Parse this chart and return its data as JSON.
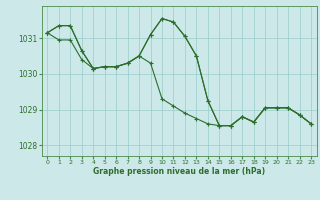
{
  "title": "Graphe pression niveau de la mer (hPa)",
  "bg_color": "#cce8e8",
  "grid_color": "#99cccc",
  "line_color": "#2d6e2d",
  "ylim": [
    1027.7,
    1031.9
  ],
  "xlim": [
    -0.5,
    23.5
  ],
  "yticks": [
    1028,
    1029,
    1030,
    1031
  ],
  "xticks": [
    0,
    1,
    2,
    3,
    4,
    5,
    6,
    7,
    8,
    9,
    10,
    11,
    12,
    13,
    14,
    15,
    16,
    17,
    18,
    19,
    20,
    21,
    22,
    23
  ],
  "series": [
    {
      "x": [
        0,
        1,
        2,
        3,
        4,
        5,
        6,
        7,
        8,
        9,
        10,
        11,
        12,
        13,
        14,
        15,
        16,
        17,
        18,
        19,
        20,
        21,
        22,
        23
      ],
      "y": [
        1031.15,
        1031.35,
        1031.35,
        1030.65,
        1030.15,
        1030.2,
        1030.2,
        1030.3,
        1030.5,
        1031.1,
        1031.55,
        1031.45,
        1031.05,
        1030.5,
        1029.25,
        1028.55,
        1028.55,
        1028.8,
        1028.65,
        1029.05,
        1029.05,
        1029.05,
        1028.85,
        1028.6
      ]
    },
    {
      "x": [
        0,
        1,
        2,
        3,
        4,
        5,
        6,
        7,
        8,
        9,
        10,
        11,
        12,
        13,
        14,
        15,
        16,
        17,
        18,
        19,
        20,
        21,
        22,
        23
      ],
      "y": [
        1031.15,
        1031.35,
        1031.35,
        1030.65,
        1030.15,
        1030.2,
        1030.2,
        1030.3,
        1030.5,
        1030.3,
        1029.3,
        1029.1,
        1028.9,
        1028.75,
        1028.6,
        1028.55,
        1028.55,
        1028.8,
        1028.65,
        1029.05,
        1029.05,
        1029.05,
        1028.85,
        1028.6
      ]
    },
    {
      "x": [
        0,
        1,
        2,
        3,
        4,
        5,
        6,
        7,
        8,
        9,
        10,
        11,
        12,
        13,
        14,
        15,
        16,
        17,
        18,
        19,
        20,
        21,
        22,
        23
      ],
      "y": [
        1031.15,
        1030.95,
        1030.95,
        1030.4,
        1030.15,
        1030.2,
        1030.2,
        1030.3,
        1030.5,
        1031.1,
        1031.55,
        1031.45,
        1031.05,
        1030.5,
        1029.25,
        1028.55,
        1028.55,
        1028.8,
        1028.65,
        1029.05,
        1029.05,
        1029.05,
        1028.85,
        1028.6
      ]
    }
  ]
}
